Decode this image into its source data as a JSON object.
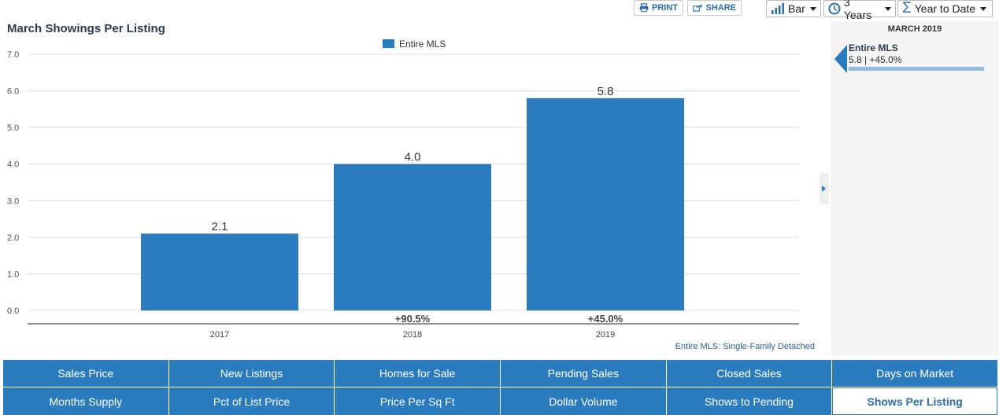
{
  "toolbar": {
    "print_label": "PRINT",
    "share_label": "SHARE",
    "chart_type": "Bar",
    "period": "3 Years",
    "range": "Year to Date"
  },
  "title": "March Showings Per Listing",
  "chart_data": {
    "type": "bar",
    "categories": [
      "2017",
      "2018",
      "2019"
    ],
    "series": [
      {
        "name": "Entire MLS",
        "values": [
          2.1,
          4.0,
          5.8
        ],
        "color": "#2b7bbf"
      }
    ],
    "value_labels": [
      "2.1",
      "4.0",
      "5.8"
    ],
    "change_labels": [
      "",
      "+90.5%",
      "+45.0%"
    ],
    "ylim": [
      0,
      7
    ],
    "yticks": [
      "0.0",
      "1.0",
      "2.0",
      "3.0",
      "4.0",
      "5.0",
      "6.0",
      "7.0"
    ],
    "grid": true,
    "legend": "top-center"
  },
  "side_panel": {
    "month": "MARCH 2019",
    "series": "Entire MLS",
    "value_text": "5.8 | +45.0%"
  },
  "footnote": "Entire MLS: Single-Family Detached",
  "tabs": [
    "Sales Price",
    "New Listings",
    "Homes for Sale",
    "Pending Sales",
    "Closed Sales",
    "Days on Market",
    "Months Supply",
    "Pct of List Price",
    "Price Per Sq Ft",
    "Dollar Volume",
    "Shows to Pending",
    "Shows Per Listing"
  ],
  "active_tab": "Shows Per Listing"
}
